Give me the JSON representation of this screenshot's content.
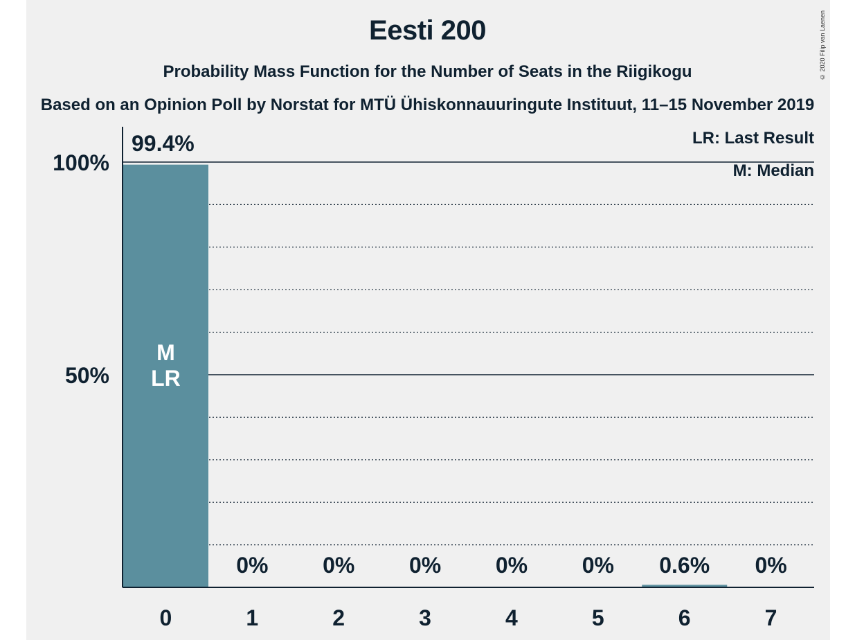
{
  "title": "Eesti 200",
  "subtitle": "Probability Mass Function for the Number of Seats in the Riigikogu",
  "source": "Based on an Opinion Poll by Norstat for MTÜ Ühiskonnauuringute Instituut, 11–15 November 2019",
  "copyright": "© 2020 Filip van Laenen",
  "legend": {
    "last_result": "LR: Last Result",
    "median": "M: Median"
  },
  "colors": {
    "bar": "#5b8f9e",
    "background": "#f0f0f0",
    "text": "#0f2130"
  },
  "chart_data": {
    "type": "bar",
    "categories": [
      "0",
      "1",
      "2",
      "3",
      "4",
      "5",
      "6",
      "7"
    ],
    "values": [
      99.4,
      0,
      0,
      0,
      0,
      0,
      0.6,
      0
    ],
    "value_labels": [
      "99.4%",
      "0%",
      "0%",
      "0%",
      "0%",
      "0%",
      "0.6%",
      "0%"
    ],
    "bar_markers": [
      "M",
      "LR"
    ],
    "marker_category": "0",
    "ylim": [
      0,
      100
    ],
    "yticks": [
      {
        "value": 50,
        "label": "50%"
      },
      {
        "value": 100,
        "label": "100%"
      }
    ],
    "xlabel": "",
    "ylabel": "",
    "grid": true,
    "legend_position": "top-right"
  }
}
